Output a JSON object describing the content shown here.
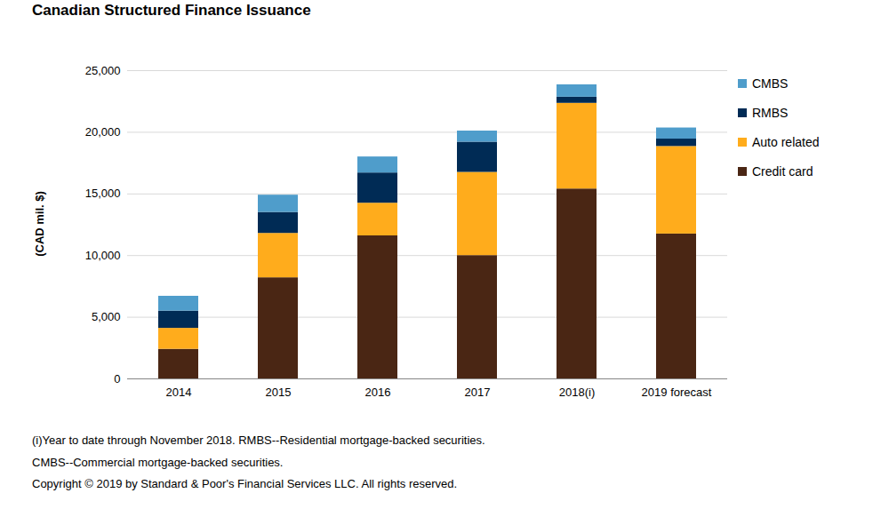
{
  "chart_data": {
    "type": "bar",
    "title": "Canadian Structured Finance Issuance",
    "y_label": "(CAD mil. $)",
    "stacked": true,
    "grid": true,
    "legend": "right",
    "categories": [
      "2014",
      "2015",
      "2016",
      "2017",
      "2018(i)",
      "2019 forecast"
    ],
    "series": [
      {
        "name": "Credit card",
        "color": "#4a2614",
        "values": [
          2400,
          8200,
          11600,
          10000,
          15400,
          11750
        ]
      },
      {
        "name": "Auto related",
        "color": "#ffac1c",
        "values": [
          1700,
          3600,
          2650,
          6750,
          6950,
          7100
        ]
      },
      {
        "name": "RMBS",
        "color": "#002b55",
        "values": [
          1400,
          1700,
          2450,
          2450,
          500,
          600
        ]
      },
      {
        "name": "CMBS",
        "color": "#4f9dcb",
        "values": [
          1200,
          1400,
          1300,
          900,
          1000,
          900
        ]
      }
    ],
    "ylim": [
      0,
      25000
    ],
    "yticks": [
      0,
      {
        "value": 5000,
        "label": "5,000"
      },
      {
        "value": 10000,
        "label": "10,000"
      },
      {
        "value": 15000,
        "label": "15,000"
      },
      {
        "value": 20000,
        "label": "20,000"
      },
      {
        "value": 25000,
        "label": "25,000"
      }
    ],
    "notes": [
      "(i)Year to date through November 2018. RMBS--Residential mortgage-backed securities.",
      "CMBS--Commercial mortgage-backed securities.",
      "Copyright © 2019 by Standard & Poor's Financial Services LLC. All rights reserved."
    ]
  }
}
